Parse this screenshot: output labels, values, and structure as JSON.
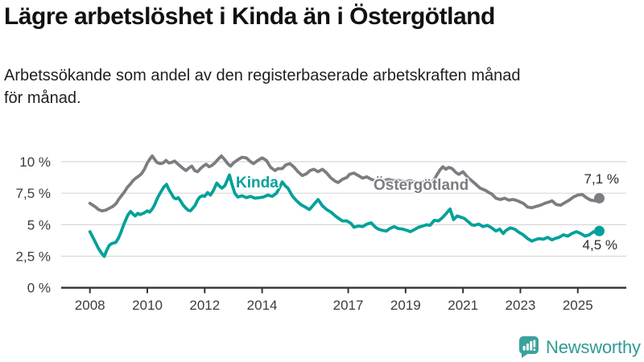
{
  "header": {
    "title": "Lägre arbetslöshet i Kinda än i Östergötland",
    "subtitle_line1": "Arbetssökande som andel av den registerbaserade arbetskraften månad",
    "subtitle_line2": "för månad."
  },
  "branding": {
    "logo_text": "Newsworthy",
    "logo_color": "#2e9a94"
  },
  "chart_data": {
    "type": "line",
    "title": "",
    "xlabel": "",
    "ylabel": "",
    "unit": "%",
    "grid": true,
    "x_range": [
      2008.0,
      2025.75
    ],
    "ylim": [
      0,
      11
    ],
    "x_axis": {
      "ticks": [
        {
          "label": "2008",
          "year": 2008
        },
        {
          "label": "2010",
          "year": 2010
        },
        {
          "label": "2012",
          "year": 2012
        },
        {
          "label": "2014",
          "year": 2014
        },
        {
          "label": "2017",
          "year": 2017
        },
        {
          "label": "2019",
          "year": 2019
        },
        {
          "label": "2021",
          "year": 2021
        },
        {
          "label": "2023",
          "year": 2023
        },
        {
          "label": "2025",
          "year": 2025
        }
      ]
    },
    "y_axis": {
      "ticks": [
        {
          "label": "10 %",
          "value": 10
        },
        {
          "label": "7,5 %",
          "value": 7.5
        },
        {
          "label": "5 %",
          "value": 5
        },
        {
          "label": "2,5 %",
          "value": 2.5
        },
        {
          "label": "0 %",
          "value": 0
        }
      ]
    },
    "series": [
      {
        "name": "Kinda",
        "color": "#00a19a",
        "end_label": "4,5 %",
        "end_value": 4.5,
        "points": [
          [
            2008.0,
            4.45
          ],
          [
            2008.08,
            4.1
          ],
          [
            2008.17,
            3.7
          ],
          [
            2008.3,
            3.1
          ],
          [
            2008.42,
            2.7
          ],
          [
            2008.5,
            2.48
          ],
          [
            2008.58,
            2.95
          ],
          [
            2008.67,
            3.35
          ],
          [
            2008.75,
            3.5
          ],
          [
            2008.9,
            3.6
          ],
          [
            2009.0,
            3.95
          ],
          [
            2009.08,
            4.4
          ],
          [
            2009.17,
            4.95
          ],
          [
            2009.25,
            5.4
          ],
          [
            2009.33,
            5.8
          ],
          [
            2009.42,
            6.05
          ],
          [
            2009.5,
            5.85
          ],
          [
            2009.58,
            5.7
          ],
          [
            2009.67,
            5.9
          ],
          [
            2009.75,
            5.8
          ],
          [
            2009.9,
            5.95
          ],
          [
            2010.0,
            6.1
          ],
          [
            2010.08,
            6.0
          ],
          [
            2010.17,
            6.25
          ],
          [
            2010.25,
            6.55
          ],
          [
            2010.33,
            7.0
          ],
          [
            2010.42,
            7.4
          ],
          [
            2010.5,
            7.7
          ],
          [
            2010.58,
            8.0
          ],
          [
            2010.67,
            8.2
          ],
          [
            2010.75,
            7.8
          ],
          [
            2010.83,
            7.5
          ],
          [
            2010.92,
            7.15
          ],
          [
            2011.0,
            7.05
          ],
          [
            2011.08,
            7.15
          ],
          [
            2011.17,
            6.85
          ],
          [
            2011.25,
            6.55
          ],
          [
            2011.33,
            6.35
          ],
          [
            2011.42,
            6.15
          ],
          [
            2011.5,
            6.1
          ],
          [
            2011.58,
            6.3
          ],
          [
            2011.67,
            6.55
          ],
          [
            2011.75,
            6.95
          ],
          [
            2011.83,
            7.2
          ],
          [
            2011.92,
            7.3
          ],
          [
            2012.0,
            7.25
          ],
          [
            2012.1,
            7.55
          ],
          [
            2012.2,
            7.35
          ],
          [
            2012.3,
            7.7
          ],
          [
            2012.42,
            8.3
          ],
          [
            2012.5,
            8.1
          ],
          [
            2012.6,
            7.9
          ],
          [
            2012.7,
            8.1
          ],
          [
            2012.8,
            8.6
          ],
          [
            2012.86,
            8.95
          ],
          [
            2012.95,
            8.2
          ],
          [
            2013.05,
            7.5
          ],
          [
            2013.15,
            7.2
          ],
          [
            2013.3,
            7.3
          ],
          [
            2013.45,
            7.15
          ],
          [
            2013.6,
            7.25
          ],
          [
            2013.75,
            7.1
          ],
          [
            2013.9,
            7.15
          ],
          [
            2014.05,
            7.2
          ],
          [
            2014.2,
            7.35
          ],
          [
            2014.35,
            7.25
          ],
          [
            2014.5,
            7.5
          ],
          [
            2014.6,
            7.9
          ],
          [
            2014.7,
            8.4
          ],
          [
            2014.8,
            8.1
          ],
          [
            2014.9,
            7.9
          ],
          [
            2015.05,
            7.3
          ],
          [
            2015.2,
            6.9
          ],
          [
            2015.35,
            6.6
          ],
          [
            2015.5,
            6.4
          ],
          [
            2015.65,
            6.2
          ],
          [
            2015.8,
            6.6
          ],
          [
            2015.95,
            7.0
          ],
          [
            2016.1,
            6.5
          ],
          [
            2016.25,
            6.2
          ],
          [
            2016.4,
            6.0
          ],
          [
            2016.55,
            5.7
          ],
          [
            2016.7,
            5.45
          ],
          [
            2016.8,
            5.3
          ],
          [
            2016.95,
            5.3
          ],
          [
            2017.1,
            5.1
          ],
          [
            2017.2,
            4.8
          ],
          [
            2017.35,
            4.9
          ],
          [
            2017.5,
            4.85
          ],
          [
            2017.65,
            5.05
          ],
          [
            2017.8,
            5.15
          ],
          [
            2017.95,
            4.8
          ],
          [
            2018.05,
            4.65
          ],
          [
            2018.2,
            4.55
          ],
          [
            2018.33,
            4.5
          ],
          [
            2018.45,
            4.7
          ],
          [
            2018.6,
            4.85
          ],
          [
            2018.75,
            4.7
          ],
          [
            2018.9,
            4.65
          ],
          [
            2019.05,
            4.55
          ],
          [
            2019.17,
            4.45
          ],
          [
            2019.3,
            4.6
          ],
          [
            2019.45,
            4.8
          ],
          [
            2019.6,
            4.9
          ],
          [
            2019.73,
            5.0
          ],
          [
            2019.85,
            4.95
          ],
          [
            2020.0,
            5.35
          ],
          [
            2020.15,
            5.3
          ],
          [
            2020.3,
            5.6
          ],
          [
            2020.42,
            5.9
          ],
          [
            2020.55,
            6.25
          ],
          [
            2020.67,
            5.4
          ],
          [
            2020.8,
            5.7
          ],
          [
            2020.92,
            5.6
          ],
          [
            2021.05,
            5.5
          ],
          [
            2021.2,
            5.2
          ],
          [
            2021.3,
            5.0
          ],
          [
            2021.4,
            4.95
          ],
          [
            2021.55,
            5.05
          ],
          [
            2021.7,
            4.85
          ],
          [
            2021.85,
            4.95
          ],
          [
            2022.0,
            4.75
          ],
          [
            2022.15,
            4.5
          ],
          [
            2022.28,
            4.65
          ],
          [
            2022.4,
            4.3
          ],
          [
            2022.5,
            4.55
          ],
          [
            2022.65,
            4.75
          ],
          [
            2022.8,
            4.65
          ],
          [
            2022.95,
            4.4
          ],
          [
            2023.1,
            4.2
          ],
          [
            2023.25,
            3.9
          ],
          [
            2023.4,
            3.7
          ],
          [
            2023.5,
            3.8
          ],
          [
            2023.65,
            3.9
          ],
          [
            2023.8,
            3.85
          ],
          [
            2023.95,
            4.0
          ],
          [
            2024.1,
            3.8
          ],
          [
            2024.2,
            3.9
          ],
          [
            2024.35,
            4.0
          ],
          [
            2024.5,
            4.2
          ],
          [
            2024.65,
            4.1
          ],
          [
            2024.8,
            4.3
          ],
          [
            2024.95,
            4.45
          ],
          [
            2025.1,
            4.3
          ],
          [
            2025.25,
            4.1
          ],
          [
            2025.4,
            4.2
          ],
          [
            2025.55,
            4.45
          ],
          [
            2025.65,
            4.35
          ],
          [
            2025.75,
            4.5
          ]
        ]
      },
      {
        "name": "Östergötland",
        "color": "#7c7c82",
        "end_label": "7,1 %",
        "end_value": 7.1,
        "points": [
          [
            2008.0,
            6.7
          ],
          [
            2008.1,
            6.55
          ],
          [
            2008.2,
            6.4
          ],
          [
            2008.3,
            6.2
          ],
          [
            2008.42,
            6.1
          ],
          [
            2008.55,
            6.15
          ],
          [
            2008.67,
            6.3
          ],
          [
            2008.8,
            6.45
          ],
          [
            2008.92,
            6.7
          ],
          [
            2009.0,
            7.0
          ],
          [
            2009.1,
            7.3
          ],
          [
            2009.2,
            7.6
          ],
          [
            2009.3,
            7.95
          ],
          [
            2009.42,
            8.25
          ],
          [
            2009.5,
            8.5
          ],
          [
            2009.6,
            8.7
          ],
          [
            2009.7,
            8.85
          ],
          [
            2009.8,
            9.05
          ],
          [
            2009.9,
            9.4
          ],
          [
            2010.0,
            9.9
          ],
          [
            2010.1,
            10.25
          ],
          [
            2010.17,
            10.45
          ],
          [
            2010.25,
            10.2
          ],
          [
            2010.33,
            9.95
          ],
          [
            2010.45,
            9.85
          ],
          [
            2010.55,
            9.9
          ],
          [
            2010.65,
            10.1
          ],
          [
            2010.75,
            9.9
          ],
          [
            2010.85,
            9.95
          ],
          [
            2010.95,
            10.05
          ],
          [
            2011.05,
            9.85
          ],
          [
            2011.15,
            9.65
          ],
          [
            2011.25,
            9.45
          ],
          [
            2011.35,
            9.3
          ],
          [
            2011.45,
            9.5
          ],
          [
            2011.55,
            9.65
          ],
          [
            2011.65,
            9.3
          ],
          [
            2011.75,
            9.2
          ],
          [
            2011.85,
            9.45
          ],
          [
            2011.95,
            9.65
          ],
          [
            2012.05,
            9.8
          ],
          [
            2012.15,
            9.6
          ],
          [
            2012.25,
            9.7
          ],
          [
            2012.35,
            9.9
          ],
          [
            2012.45,
            10.15
          ],
          [
            2012.58,
            10.45
          ],
          [
            2012.7,
            10.15
          ],
          [
            2012.8,
            9.85
          ],
          [
            2012.9,
            9.65
          ],
          [
            2013.0,
            9.9
          ],
          [
            2013.15,
            10.15
          ],
          [
            2013.3,
            10.35
          ],
          [
            2013.45,
            10.3
          ],
          [
            2013.6,
            10.0
          ],
          [
            2013.7,
            9.85
          ],
          [
            2013.85,
            10.1
          ],
          [
            2014.0,
            10.3
          ],
          [
            2014.15,
            10.1
          ],
          [
            2014.3,
            9.55
          ],
          [
            2014.45,
            9.3
          ],
          [
            2014.55,
            9.45
          ],
          [
            2014.7,
            9.45
          ],
          [
            2014.83,
            9.75
          ],
          [
            2014.97,
            9.85
          ],
          [
            2015.1,
            9.6
          ],
          [
            2015.25,
            9.2
          ],
          [
            2015.4,
            8.9
          ],
          [
            2015.55,
            9.05
          ],
          [
            2015.67,
            9.3
          ],
          [
            2015.8,
            9.4
          ],
          [
            2015.95,
            9.2
          ],
          [
            2016.1,
            9.4
          ],
          [
            2016.25,
            9.1
          ],
          [
            2016.4,
            8.7
          ],
          [
            2016.55,
            8.45
          ],
          [
            2016.65,
            8.35
          ],
          [
            2016.8,
            8.6
          ],
          [
            2016.95,
            8.75
          ],
          [
            2017.05,
            9.0
          ],
          [
            2017.2,
            9.1
          ],
          [
            2017.35,
            8.9
          ],
          [
            2017.5,
            8.7
          ],
          [
            2017.65,
            8.8
          ],
          [
            2017.8,
            8.6
          ],
          [
            2017.95,
            8.5
          ],
          [
            2018.1,
            8.6
          ],
          [
            2018.25,
            8.5
          ],
          [
            2018.4,
            8.6
          ],
          [
            2018.55,
            8.5
          ],
          [
            2018.7,
            8.55
          ],
          [
            2018.85,
            8.45
          ],
          [
            2019.0,
            8.4
          ],
          [
            2019.15,
            8.5
          ],
          [
            2019.3,
            8.4
          ],
          [
            2019.45,
            8.35
          ],
          [
            2019.6,
            8.4
          ],
          [
            2019.75,
            8.3
          ],
          [
            2019.9,
            8.35
          ],
          [
            2020.0,
            8.6
          ],
          [
            2020.1,
            9.0
          ],
          [
            2020.2,
            9.35
          ],
          [
            2020.3,
            9.6
          ],
          [
            2020.4,
            9.4
          ],
          [
            2020.5,
            9.55
          ],
          [
            2020.62,
            9.45
          ],
          [
            2020.75,
            9.15
          ],
          [
            2020.85,
            9.0
          ],
          [
            2021.0,
            9.2
          ],
          [
            2021.15,
            8.8
          ],
          [
            2021.3,
            8.5
          ],
          [
            2021.45,
            8.2
          ],
          [
            2021.6,
            7.9
          ],
          [
            2021.8,
            7.7
          ],
          [
            2021.9,
            7.55
          ],
          [
            2022.0,
            7.45
          ],
          [
            2022.15,
            7.1
          ],
          [
            2022.3,
            7.0
          ],
          [
            2022.45,
            7.1
          ],
          [
            2022.6,
            6.95
          ],
          [
            2022.75,
            7.0
          ],
          [
            2022.9,
            6.9
          ],
          [
            2023.1,
            6.7
          ],
          [
            2023.25,
            6.4
          ],
          [
            2023.4,
            6.35
          ],
          [
            2023.55,
            6.45
          ],
          [
            2023.7,
            6.55
          ],
          [
            2023.85,
            6.7
          ],
          [
            2024.0,
            6.8
          ],
          [
            2024.1,
            6.9
          ],
          [
            2024.25,
            6.6
          ],
          [
            2024.4,
            6.55
          ],
          [
            2024.55,
            6.75
          ],
          [
            2024.7,
            6.95
          ],
          [
            2024.85,
            7.2
          ],
          [
            2025.0,
            7.35
          ],
          [
            2025.15,
            7.4
          ],
          [
            2025.3,
            7.15
          ],
          [
            2025.45,
            6.95
          ],
          [
            2025.6,
            6.9
          ],
          [
            2025.75,
            7.1
          ]
        ]
      }
    ]
  }
}
